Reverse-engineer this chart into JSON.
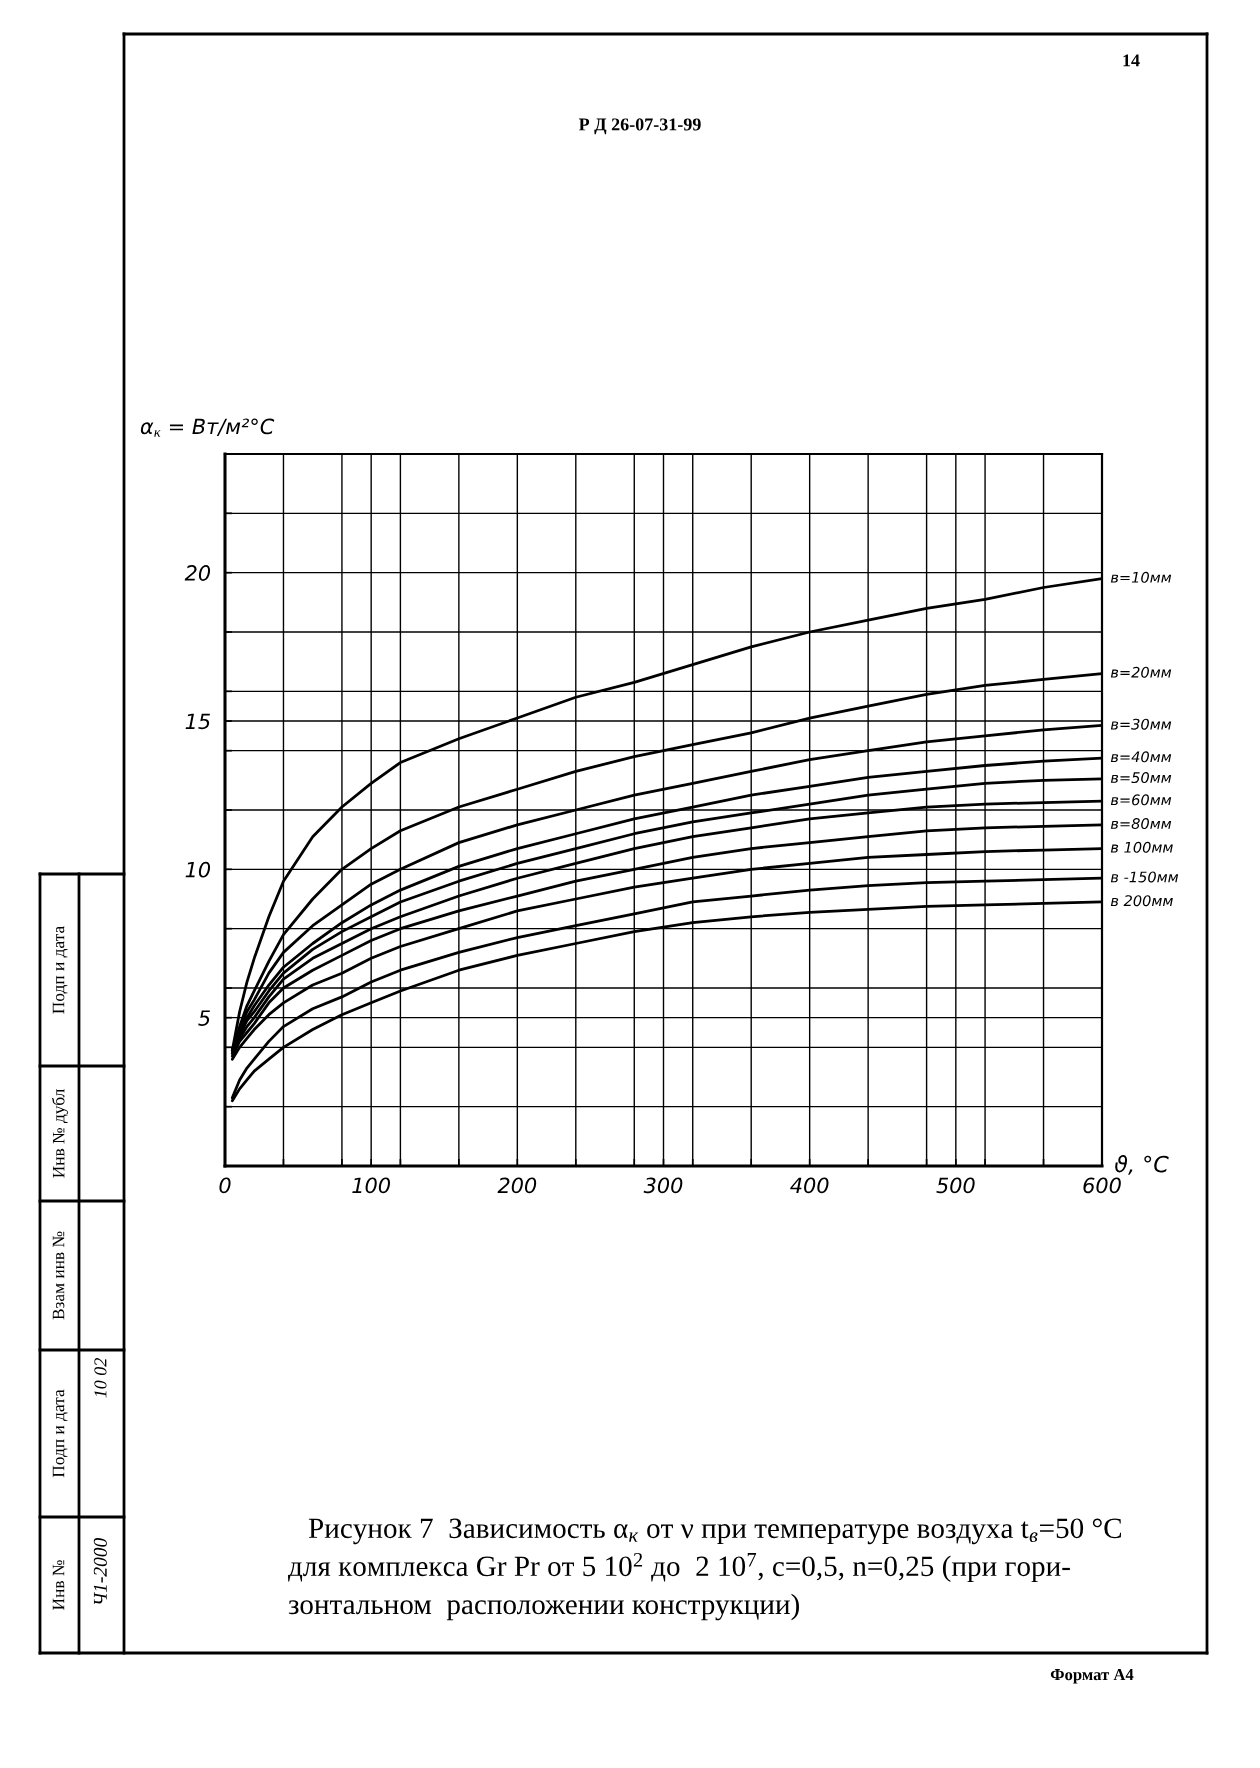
{
  "chart_data": {
    "type": "line",
    "title": "Р Д 26-07-31-99",
    "xlabel": "ϑ, °C",
    "ylabel": "α$_{к}$ = Вт/м²°C",
    "annotations": [
      "14",
      "Рисунок 7  Зависимость α$_{к}$ от ν при температуре воздуха t$_{в}$=50 °C",
      "для комплекса Gr Pr от 5 10$^{2}$ до  2 10$^{7}$, с=0,5, n=0,25 (при гори-",
      "зонтальном  расположении конструкции)",
      "Формат А4",
      "Подп и дата",
      "Инв № дубл",
      "Взам инв №",
      "Подп и дата",
      "Инв №",
      "10 02",
      "Ч1-2000"
    ],
    "x": [
      5,
      10,
      15,
      20,
      30,
      40,
      60,
      80,
      100,
      120,
      160,
      200,
      240,
      280,
      320,
      360,
      400,
      440,
      480,
      520,
      560,
      600
    ],
    "series": [
      {
        "name": "в=10мм",
        "color": "#000000",
        "values": [
          3.9,
          5.2,
          6.2,
          7.0,
          8.4,
          9.6,
          11.1,
          12.1,
          12.9,
          13.6,
          14.4,
          15.1,
          15.8,
          16.3,
          16.9,
          17.5,
          18.0,
          18.4,
          18.8,
          19.1,
          19.5,
          19.8
        ]
      },
      {
        "name": "в=20мм",
        "color": "#000000",
        "values": [
          3.9,
          4.7,
          5.4,
          5.9,
          6.9,
          7.8,
          9.0,
          10.0,
          10.7,
          11.3,
          12.1,
          12.7,
          13.3,
          13.8,
          14.2,
          14.6,
          15.1,
          15.5,
          15.9,
          16.2,
          16.4,
          16.6
        ]
      },
      {
        "name": "в=30мм",
        "color": "#000000",
        "values": [
          3.9,
          4.6,
          5.2,
          5.6,
          6.5,
          7.2,
          8.1,
          8.8,
          9.5,
          10.0,
          10.9,
          11.5,
          12.0,
          12.5,
          12.9,
          13.3,
          13.7,
          14.0,
          14.3,
          14.5,
          14.7,
          14.85
        ]
      },
      {
        "name": "в=40мм",
        "color": "#000000",
        "values": [
          3.9,
          4.5,
          5.0,
          5.4,
          6.1,
          6.7,
          7.5,
          8.2,
          8.8,
          9.3,
          10.1,
          10.7,
          11.2,
          11.7,
          12.1,
          12.5,
          12.8,
          13.1,
          13.3,
          13.5,
          13.65,
          13.75
        ]
      },
      {
        "name": "в=50мм",
        "color": "#000000",
        "values": [
          3.8,
          4.4,
          4.9,
          5.2,
          5.9,
          6.5,
          7.3,
          7.9,
          8.4,
          8.9,
          9.6,
          10.2,
          10.7,
          11.2,
          11.6,
          11.9,
          12.2,
          12.5,
          12.7,
          12.9,
          13.0,
          13.05
        ]
      },
      {
        "name": "в=60мм",
        "color": "#000000",
        "values": [
          3.8,
          4.3,
          4.7,
          5.0,
          5.7,
          6.3,
          7.0,
          7.5,
          8.0,
          8.4,
          9.1,
          9.7,
          10.2,
          10.7,
          11.1,
          11.4,
          11.7,
          11.9,
          12.1,
          12.2,
          12.25,
          12.3
        ]
      },
      {
        "name": "в=80мм",
        "color": "#000000",
        "values": [
          3.7,
          4.2,
          4.5,
          4.8,
          5.5,
          6.0,
          6.6,
          7.1,
          7.6,
          8.0,
          8.6,
          9.1,
          9.6,
          10.0,
          10.4,
          10.7,
          10.9,
          11.1,
          11.3,
          11.4,
          11.45,
          11.5
        ]
      },
      {
        "name": "в 100мм",
        "color": "#000000",
        "values": [
          3.6,
          4.0,
          4.3,
          4.6,
          5.1,
          5.5,
          6.1,
          6.5,
          7.0,
          7.4,
          8.0,
          8.6,
          9.0,
          9.4,
          9.7,
          10.0,
          10.2,
          10.4,
          10.5,
          10.6,
          10.65,
          10.7
        ]
      },
      {
        "name": "в -150мм",
        "color": "#000000",
        "values": [
          2.3,
          2.9,
          3.3,
          3.6,
          4.2,
          4.7,
          5.3,
          5.7,
          6.2,
          6.6,
          7.2,
          7.7,
          8.1,
          8.5,
          8.9,
          9.1,
          9.3,
          9.45,
          9.55,
          9.6,
          9.65,
          9.7
        ]
      },
      {
        "name": "в 200мм",
        "color": "#000000",
        "values": [
          2.2,
          2.6,
          2.9,
          3.2,
          3.6,
          4.0,
          4.6,
          5.1,
          5.5,
          5.9,
          6.6,
          7.1,
          7.5,
          7.9,
          8.2,
          8.4,
          8.55,
          8.65,
          8.75,
          8.8,
          8.85,
          8.9
        ]
      }
    ],
    "xlim": [
      0,
      600
    ],
    "ylim": [
      0,
      24
    ],
    "xticks": [
      0,
      {
        "value": 40,
        "label": null
      },
      {
        "value": 80,
        "label": null
      },
      100,
      {
        "value": 120,
        "label": null
      },
      {
        "value": 160,
        "label": null
      },
      200,
      {
        "value": 240,
        "label": null
      },
      {
        "value": 280,
        "label": null
      },
      300,
      {
        "value": 320,
        "label": null
      },
      {
        "value": 360,
        "label": null
      },
      400,
      {
        "value": 440,
        "label": null
      },
      {
        "value": 480,
        "label": null
      },
      500,
      {
        "value": 520,
        "label": null
      },
      {
        "value": 560,
        "label": null
      },
      600
    ],
    "yticks": [
      {
        "value": 2,
        "label": null
      },
      {
        "value": 4,
        "label": null
      },
      5,
      {
        "value": 6,
        "label": null
      },
      {
        "value": 8,
        "label": null
      },
      10,
      {
        "value": 12,
        "label": null
      },
      {
        "value": 14,
        "label": null
      },
      15,
      {
        "value": 16,
        "label": null
      },
      {
        "value": 18,
        "label": null
      },
      20,
      {
        "value": 22,
        "label": null
      },
      {
        "value": 24,
        "label": null
      }
    ],
    "grid": true,
    "marker": "none",
    "line_style": "solid"
  }
}
